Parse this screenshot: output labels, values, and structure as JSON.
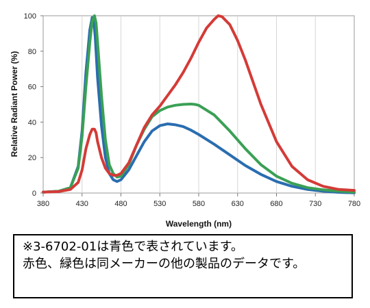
{
  "chart_data": {
    "type": "line",
    "xlabel": "Wavelength (nm)",
    "ylabel": "Relative Radiant Power (%)",
    "xlim": [
      380,
      780
    ],
    "ylim": [
      0,
      100
    ],
    "x_ticks": [
      380,
      430,
      480,
      530,
      580,
      630,
      680,
      730,
      780
    ],
    "y_ticks": [
      0,
      20,
      40,
      60,
      80,
      100
    ],
    "grid": "vertical",
    "legend": "none",
    "series": [
      {
        "color": "#2a6db0",
        "x": [
          380,
          400,
          415,
          425,
          430,
          435,
          440,
          443,
          445,
          447,
          450,
          455,
          460,
          465,
          470,
          475,
          480,
          490,
          500,
          510,
          520,
          530,
          540,
          550,
          560,
          570,
          580,
          600,
          620,
          640,
          660,
          680,
          700,
          720,
          740,
          760,
          780
        ],
        "y": [
          0.5,
          1,
          3,
          15,
          35,
          68,
          92,
          99,
          97,
          88,
          65,
          38,
          20,
          11,
          7.5,
          6.5,
          7.5,
          13,
          21,
          29,
          35,
          38,
          39,
          38.5,
          37.5,
          35.5,
          33,
          27.5,
          21.5,
          15.5,
          10.5,
          6.5,
          3.8,
          2,
          1,
          0.4,
          0.1
        ]
      },
      {
        "color": "#3aa055",
        "x": [
          380,
          400,
          415,
          425,
          430,
          435,
          440,
          443,
          446,
          448,
          450,
          455,
          460,
          465,
          470,
          475,
          480,
          490,
          500,
          510,
          520,
          530,
          540,
          550,
          560,
          570,
          575,
          580,
          600,
          620,
          640,
          660,
          680,
          700,
          720,
          740,
          760,
          780
        ],
        "y": [
          0.5,
          1,
          3,
          14,
          32,
          60,
          85,
          97,
          100,
          96,
          85,
          55,
          30,
          16,
          11,
          9,
          9.5,
          16,
          27,
          36,
          43,
          46.5,
          48.5,
          49.5,
          50,
          50.2,
          50,
          49.5,
          44,
          35,
          25,
          16,
          9.5,
          5.5,
          3,
          1.8,
          1,
          0.5
        ]
      },
      {
        "color": "#d43b37",
        "x": [
          380,
          400,
          415,
          425,
          430,
          435,
          440,
          443,
          446,
          448,
          450,
          455,
          460,
          465,
          470,
          475,
          480,
          490,
          500,
          510,
          520,
          530,
          540,
          550,
          560,
          570,
          580,
          590,
          600,
          605,
          610,
          620,
          630,
          640,
          660,
          680,
          700,
          720,
          740,
          760,
          780
        ],
        "y": [
          0.5,
          0.8,
          2,
          6,
          13,
          25,
          33,
          36,
          36,
          34,
          29,
          20,
          14,
          11,
          10,
          10,
          11,
          17,
          27,
          37,
          44,
          49,
          55,
          61,
          68,
          76,
          85,
          93,
          98,
          100,
          99.5,
          95,
          86,
          75,
          50,
          29,
          15,
          7.5,
          3.8,
          2,
          1.5
        ]
      }
    ]
  },
  "note": {
    "lines": [
      "※3-6702-01は青色で表されています。",
      "赤色、緑色は同メーカーの他の製品のデータです。"
    ]
  }
}
